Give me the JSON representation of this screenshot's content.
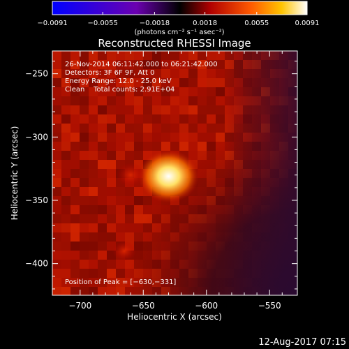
{
  "chart_data": {
    "type": "heatmap",
    "title": "Reconstructed RHESSI Image",
    "xlabel": "Heliocentric X (arcsec)",
    "ylabel": "Heliocentric Y (arcsec)",
    "xlim": [
      -722,
      -528
    ],
    "ylim": [
      -425,
      -232
    ],
    "xticks": [
      -700,
      -650,
      -600,
      -550
    ],
    "xtick_labels": [
      "−700",
      "−650",
      "−600",
      "−550"
    ],
    "yticks": [
      -250,
      -300,
      -350,
      -400
    ],
    "ytick_labels": [
      "−250",
      "−300",
      "−350",
      "−400"
    ],
    "colorbar": {
      "min": -0.0091,
      "max": 0.0091,
      "ticks": [
        -0.0091,
        -0.0055,
        -0.0018,
        0.0018,
        0.0055,
        0.0091
      ],
      "tick_labels": [
        "−0.0091",
        "−0.0055",
        "−0.0018",
        "0.0018",
        "0.0055",
        "0.0091"
      ],
      "units": "(photons cm⁻² s⁻¹ asec⁻²)"
    },
    "sources": [
      {
        "x": -630,
        "y": -331,
        "value": 0.0091
      },
      {
        "x": -660,
        "y": -330,
        "value": 0.0025
      },
      {
        "x": -665,
        "y": -390,
        "value": 0.0015
      }
    ],
    "annotations": {
      "time": "26-Nov-2014 06:11:42.000 to 06:21:42.000",
      "detectors": "Detectors: 3F 6F 9F, Att 0",
      "energy": "Energy Range: 12.0 - 25.0 keV",
      "clean": "Clean    Total counts: 2.91E+04",
      "peak": "Position of Peak = [−630,−331]"
    }
  },
  "footer": {
    "date": "12-Aug-2017 07:15"
  }
}
